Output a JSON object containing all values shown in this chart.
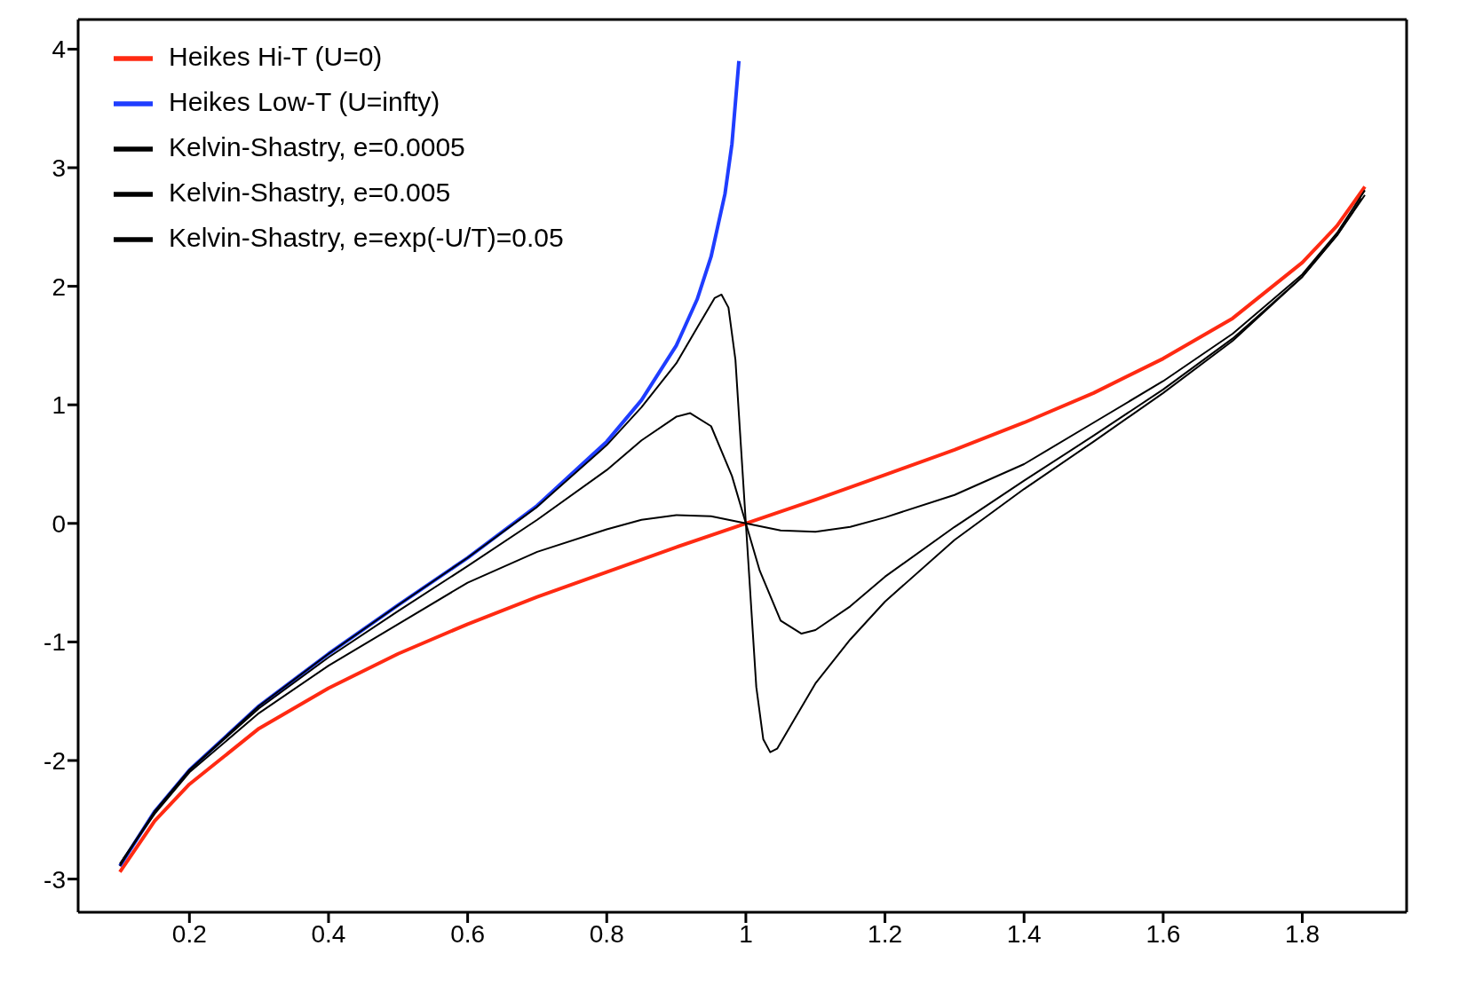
{
  "chart_data": {
    "type": "line",
    "xlim": [
      0.04,
      1.95
    ],
    "ylim": [
      -3.28,
      4.25
    ],
    "xticks": [
      0.2,
      0.4,
      0.6,
      0.8,
      1,
      1.2,
      1.4,
      1.6,
      1.8
    ],
    "yticks": [
      -3,
      -2,
      -1,
      0,
      1,
      2,
      3,
      4
    ],
    "legend": "top left",
    "grid": false,
    "marker": "none",
    "line_style": "solid",
    "series": [
      {
        "name": "Heikes Hi-T (U=0)",
        "color": "#ff2a12",
        "x": [
          0.1,
          0.15,
          0.2,
          0.3,
          0.4,
          0.5,
          0.6,
          0.7,
          0.8,
          0.9,
          1.0,
          1.1,
          1.2,
          1.3,
          1.4,
          1.5,
          1.6,
          1.7,
          1.8,
          1.85,
          1.89
        ],
        "values": [
          -2.94,
          -2.51,
          -2.2,
          -1.73,
          -1.39,
          -1.1,
          -0.85,
          -0.62,
          -0.41,
          -0.2,
          0,
          0.2,
          0.41,
          0.62,
          0.85,
          1.1,
          1.39,
          1.73,
          2.2,
          2.51,
          2.84
        ]
      },
      {
        "name": "Heikes Low-T (U=infty)",
        "color": "#1f3dff",
        "x": [
          0.1,
          0.15,
          0.2,
          0.3,
          0.4,
          0.5,
          0.6,
          0.7,
          0.8,
          0.85,
          0.9,
          0.93,
          0.95,
          0.97,
          0.98,
          0.99
        ],
        "values": [
          -2.89,
          -2.43,
          -2.08,
          -1.54,
          -1.1,
          -0.69,
          -0.29,
          0.15,
          0.69,
          1.04,
          1.5,
          1.89,
          2.25,
          2.78,
          3.2,
          3.9
        ]
      },
      {
        "name": "Kelvin-Shastry, e=exp(-U/T)=0.05",
        "color": "#000000",
        "x": [
          0.1,
          0.15,
          0.2,
          0.3,
          0.4,
          0.5,
          0.6,
          0.7,
          0.8,
          0.85,
          0.9,
          0.95,
          1.0,
          1.05,
          1.1,
          1.15,
          1.2,
          1.3,
          1.4,
          1.5,
          1.6,
          1.7,
          1.8,
          1.85,
          1.89
        ],
        "values": [
          -2.87,
          -2.45,
          -2.1,
          -1.6,
          -1.2,
          -0.85,
          -0.5,
          -0.24,
          -0.05,
          0.03,
          0.07,
          0.06,
          0,
          -0.06,
          -0.07,
          -0.03,
          0.05,
          0.24,
          0.5,
          0.85,
          1.2,
          1.6,
          2.1,
          2.45,
          2.81
        ]
      },
      {
        "name": "Kelvin-Shastry, e=0.005",
        "color": "#000000",
        "x": [
          0.105,
          0.15,
          0.2,
          0.3,
          0.4,
          0.5,
          0.6,
          0.7,
          0.8,
          0.85,
          0.9,
          0.92,
          0.95,
          0.98,
          1.0,
          1.02,
          1.05,
          1.08,
          1.1,
          1.15,
          1.2,
          1.3,
          1.4,
          1.5,
          1.6,
          1.7,
          1.8,
          1.85,
          1.885
        ],
        "values": [
          -2.83,
          -2.43,
          -2.08,
          -1.56,
          -1.13,
          -0.74,
          -0.36,
          0.03,
          0.45,
          0.7,
          0.9,
          0.93,
          0.82,
          0.4,
          0,
          -0.4,
          -0.82,
          -0.93,
          -0.9,
          -0.7,
          -0.45,
          -0.03,
          0.36,
          0.74,
          1.13,
          1.56,
          2.08,
          2.43,
          2.74
        ]
      },
      {
        "name": "Kelvin-Shastry, e=0.0005",
        "color": "#000000",
        "x": [
          0.1,
          0.15,
          0.2,
          0.3,
          0.4,
          0.5,
          0.6,
          0.7,
          0.8,
          0.85,
          0.9,
          0.93,
          0.955,
          0.965,
          0.975,
          0.985,
          1.0,
          1.015,
          1.025,
          1.035,
          1.045,
          1.07,
          1.1,
          1.15,
          1.2,
          1.3,
          1.4,
          1.5,
          1.6,
          1.7,
          1.8,
          1.85,
          1.89
        ],
        "values": [
          -2.89,
          -2.43,
          -2.08,
          -1.54,
          -1.1,
          -0.69,
          -0.29,
          0.14,
          0.66,
          0.98,
          1.35,
          1.65,
          1.9,
          1.93,
          1.82,
          1.38,
          0,
          -1.38,
          -1.82,
          -1.93,
          -1.9,
          -1.65,
          -1.35,
          -0.98,
          -0.66,
          -0.14,
          0.29,
          0.69,
          1.1,
          1.54,
          2.08,
          2.43,
          2.77
        ]
      }
    ]
  }
}
